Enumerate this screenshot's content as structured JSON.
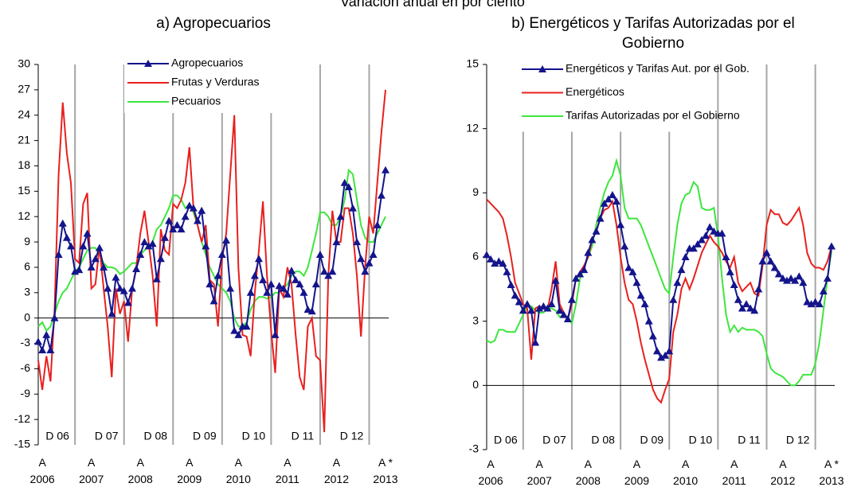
{
  "header": {
    "title": "Variación anual en por ciento"
  },
  "chart_data": [
    {
      "type": "line",
      "title": "a) Agropecuarios",
      "categories": [
        null,
        "A\n2006",
        null,
        null,
        null,
        null,
        null,
        null,
        null,
        null,
        null,
        null,
        null,
        "A\n2007",
        null,
        null,
        null,
        null,
        null,
        null,
        null,
        null,
        null,
        null,
        null,
        "A\n2008",
        null,
        null,
        null,
        null,
        null,
        null,
        null,
        null,
        null,
        null,
        null,
        "A\n2009",
        null,
        null,
        null,
        null,
        null,
        null,
        null,
        null,
        null,
        null,
        null,
        "A\n2010",
        null,
        null,
        null,
        null,
        null,
        null,
        null,
        null,
        null,
        null,
        null,
        "A\n2011",
        null,
        null,
        null,
        null,
        null,
        null,
        null,
        null,
        null,
        null,
        null,
        "A\n2012",
        null,
        null,
        null,
        null,
        null,
        null,
        null,
        null,
        null,
        null,
        null,
        "A *\n2013"
      ],
      "series": [
        {
          "name": "Agropecuarios",
          "color": "#14148c",
          "marker": "triangle",
          "values": [
            -2.8,
            -3.8,
            -2,
            -3.8,
            0,
            7.5,
            11.2,
            9.5,
            8.5,
            5.5,
            5.7,
            8.5,
            10,
            6,
            7,
            8.3,
            6,
            3.5,
            0.5,
            4.8,
            3.5,
            3.2,
            1.8,
            3.5,
            5.8,
            7.5,
            9,
            8.5,
            8.8,
            4.6,
            7,
            9.5,
            11.5,
            10.5,
            11,
            10.5,
            12,
            13.3,
            13,
            11.5,
            12.7,
            8.5,
            4,
            2,
            5,
            7.5,
            9.2,
            3.5,
            -1.5,
            -2,
            -1,
            -1,
            3,
            5,
            7,
            4.5,
            3,
            4,
            -2,
            3.8,
            3.5,
            2.8,
            5.6,
            4.5,
            4,
            3,
            1,
            0.8,
            4,
            7.5,
            5.5,
            5,
            5.5,
            9,
            12,
            16,
            15.5,
            13,
            9,
            7,
            5.5,
            6.5,
            7.5,
            11,
            14.5,
            17.5
          ]
        },
        {
          "name": "Frutas y Verduras",
          "color": "#e8201e",
          "values": [
            -5,
            -8.5,
            -4.5,
            -7.5,
            1,
            17,
            25.5,
            19.5,
            16,
            7,
            6.5,
            13.5,
            14.8,
            3.5,
            4,
            8.5,
            3.5,
            -1,
            -7,
            3.5,
            0.5,
            2,
            -2.8,
            3.5,
            6,
            10,
            12.7,
            9,
            5,
            -1,
            10.5,
            8,
            7.5,
            13.5,
            13,
            14,
            16,
            20.2,
            13,
            11,
            9,
            11,
            4.5,
            4,
            -1,
            7,
            10,
            17,
            24,
            6,
            -2,
            -2.2,
            -4.5,
            3,
            8,
            13.8,
            5,
            -1.5,
            -6.5,
            3.5,
            2.5,
            6,
            4,
            -2,
            -7,
            -8.5,
            -1,
            0,
            -4.5,
            -5,
            -13.5,
            5,
            12.7,
            9,
            9,
            13,
            13,
            10,
            5,
            -2.2,
            6,
            12,
            10,
            16,
            22,
            27
          ]
        },
        {
          "name": "Pecuarios",
          "color": "#3ee63e",
          "values": [
            -1,
            -0.5,
            -1.5,
            -1,
            0.5,
            2,
            3,
            3.5,
            4.5,
            5.5,
            6,
            7,
            8,
            8.3,
            8.3,
            7.5,
            6.5,
            6,
            6,
            5.8,
            5.2,
            5.5,
            6,
            6.5,
            6.5,
            7.5,
            8,
            8.5,
            9,
            10.5,
            11,
            12,
            13,
            14.5,
            14.5,
            14,
            13,
            13.5,
            12.5,
            11,
            9,
            7.5,
            6,
            5,
            4,
            3.5,
            3,
            2,
            0,
            -1,
            -1,
            -0.5,
            1,
            2,
            2.5,
            2.5,
            2.3,
            2.5,
            3,
            3,
            3.5,
            4,
            5,
            5.5,
            5.5,
            5,
            6,
            8,
            10,
            12.5,
            12.5,
            12,
            11,
            11,
            12,
            14,
            17.5,
            17,
            14,
            11,
            9.5,
            9,
            9,
            10,
            11,
            12
          ]
        }
      ],
      "ylim": [
        -15,
        30
      ],
      "yticks": [
        -15,
        -12,
        -9,
        -6,
        -3,
        0,
        3,
        6,
        9,
        12,
        15,
        18,
        21,
        24,
        27,
        30
      ],
      "annotations": [
        {
          "text": "D 06",
          "x": 9
        },
        {
          "text": "D 07",
          "x": 21
        },
        {
          "text": "D 08",
          "x": 33
        },
        {
          "text": "D 09",
          "x": 45
        },
        {
          "text": "D 10",
          "x": 57
        },
        {
          "text": "D 11",
          "x": 69
        },
        {
          "text": "D 12",
          "x": 81
        }
      ]
    },
    {
      "type": "line",
      "title": "b) Energéticos y Tarifas Autorizadas por el\nGobierno",
      "categories": [
        null,
        "A\n2006",
        null,
        null,
        null,
        null,
        null,
        null,
        null,
        null,
        null,
        null,
        null,
        "A\n2007",
        null,
        null,
        null,
        null,
        null,
        null,
        null,
        null,
        null,
        null,
        null,
        "A\n2008",
        null,
        null,
        null,
        null,
        null,
        null,
        null,
        null,
        null,
        null,
        null,
        "A\n2009",
        null,
        null,
        null,
        null,
        null,
        null,
        null,
        null,
        null,
        null,
        null,
        "A\n2010",
        null,
        null,
        null,
        null,
        null,
        null,
        null,
        null,
        null,
        null,
        null,
        "A\n2011",
        null,
        null,
        null,
        null,
        null,
        null,
        null,
        null,
        null,
        null,
        null,
        "A\n2012",
        null,
        null,
        null,
        null,
        null,
        null,
        null,
        null,
        null,
        null,
        null,
        "A *\n2013"
      ],
      "series": [
        {
          "name": "Energéticos y Tarifas Aut. por el Gob.",
          "color": "#14148c",
          "marker": "triangle",
          "values": [
            6.1,
            5.9,
            5.7,
            5.8,
            5.7,
            5.3,
            4.7,
            4.2,
            3.9,
            3.5,
            3.8,
            3.5,
            2,
            3.6,
            3.7,
            3.6,
            3.8,
            4.9,
            3.5,
            3.3,
            3.1,
            4,
            5,
            5.2,
            5.4,
            6.2,
            6.8,
            7.2,
            7.8,
            8.5,
            8.7,
            8.9,
            8.6,
            7.5,
            6.5,
            5.5,
            5.3,
            4.8,
            4.2,
            3.8,
            3,
            2.3,
            1.6,
            1.3,
            1.4,
            1.6,
            4,
            4.8,
            5.4,
            6,
            6.4,
            6.4,
            6.6,
            6.8,
            7,
            7.4,
            7.2,
            7.1,
            7.1,
            6,
            5.3,
            4.7,
            4,
            3.6,
            3.8,
            3.6,
            3.5,
            4.5,
            5.8,
            6.2,
            5.8,
            5.5,
            5.2,
            5,
            4.9,
            5,
            4.9,
            5.1,
            4.8,
            3.9,
            3.8,
            3.9,
            3.8,
            4.4,
            5,
            6.5
          ]
        },
        {
          "name": "Energéticos",
          "color": "#e8201e",
          "values": [
            8.7,
            8.5,
            8.3,
            8.1,
            7.8,
            7,
            6,
            4.8,
            4.3,
            3.8,
            3.6,
            1.2,
            3.6,
            3.7,
            3.6,
            3.5,
            4.5,
            5.8,
            3.8,
            3.4,
            3.1,
            3.8,
            5,
            5.3,
            5.6,
            6,
            6.8,
            7.2,
            7.8,
            8.2,
            8.3,
            8.6,
            7.5,
            6,
            4.8,
            4,
            3.8,
            3,
            2,
            1.2,
            0.5,
            -0.2,
            -0.6,
            -0.8,
            -0.2,
            0.3,
            2.5,
            3.3,
            4.5,
            5,
            4.5,
            5,
            5.6,
            6.2,
            6.6,
            7,
            6.7,
            6.5,
            6.2,
            5.8,
            5.5,
            6,
            4.8,
            4.4,
            4.6,
            4.8,
            4.3,
            4.2,
            5.6,
            7.5,
            8.2,
            8,
            8,
            7.6,
            7.5,
            7.7,
            8,
            8.3,
            7.5,
            6.2,
            5.7,
            5.5,
            5.5,
            5.4,
            5.8,
            6.5
          ]
        },
        {
          "name": "Tarifas Autorizadas por el Gobierno",
          "color": "#3ee63e",
          "values": [
            2.1,
            2,
            2.1,
            2.6,
            2.6,
            2.5,
            2.5,
            2.5,
            2.9,
            3.3,
            3.7,
            3.7,
            3.5,
            3.4,
            3.4,
            3.6,
            3.6,
            3.5,
            3.2,
            3.3,
            3.2,
            2.9,
            3.8,
            5,
            5.5,
            6,
            6.5,
            7.5,
            8.3,
            9,
            9.5,
            9.8,
            10.5,
            9.8,
            8.3,
            7.8,
            7.8,
            7.8,
            7.5,
            7,
            6.5,
            6,
            5.5,
            5,
            4.5,
            4.3,
            6,
            7.5,
            8.5,
            8.9,
            9,
            9.5,
            9.3,
            8.3,
            8.2,
            8.2,
            8.3,
            7,
            5,
            3.3,
            2.5,
            2.8,
            2.5,
            2.7,
            2.6,
            2.6,
            2.6,
            2.5,
            2.3,
            1.5,
            0.8,
            0.6,
            0.5,
            0.4,
            0.2,
            0,
            0,
            0.2,
            0.5,
            0.5,
            0.5,
            1,
            2,
            3.5,
            5,
            6.3
          ]
        }
      ],
      "ylim": [
        -3,
        15
      ],
      "yticks": [
        -3,
        0,
        3,
        6,
        9,
        12,
        15
      ],
      "annotations": [
        {
          "text": "D 06",
          "x": 9
        },
        {
          "text": "D 07",
          "x": 21
        },
        {
          "text": "D 08",
          "x": 33
        },
        {
          "text": "D 09",
          "x": 45
        },
        {
          "text": "D 10",
          "x": 57
        },
        {
          "text": "D 11",
          "x": 69
        },
        {
          "text": "D 12",
          "x": 81
        }
      ]
    }
  ]
}
